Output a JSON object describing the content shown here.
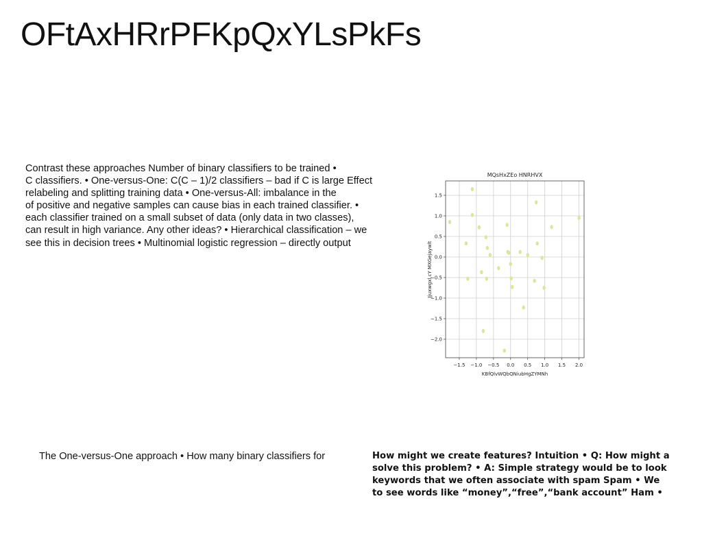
{
  "slide": {
    "title": "OFtAxHRrPFKpQxYLsPkFs",
    "main_paragraph_lines": [
      "Contrast these approaches Number of binary classifiers to be trained •",
      "C classifiers. • One-versus-One: C(C – 1)/2 classifiers – bad if C is large Effect",
      "relabeling and splitting training data • One-versus-All: imbalance in the",
      "of positive and negative samples can cause bias in each trained classifier. •",
      "each classifier trained on a small subset of data (only data in two classes),",
      "can result in high variance. Any other ideas? • Hierarchical classification – we",
      "see this in decision trees • Multinomial logistic regression – directly output"
    ],
    "bottom_text": "The One-versus-One approach • How many binary classifiers for",
    "right_paragraph_lines": [
      "How might we create features? Intuition • Q: How might a",
      "solve this problem? • A: Simple strategy would be to look",
      "keywords that we often associate with spam Spam • We",
      "to see words like “money”,“free”,“bank account” Ham •"
    ]
  },
  "chart_data": {
    "type": "scatter",
    "title": "MQsHxZEo HNRHVX",
    "xlabel": "KBfQlvWQbQNiubHgZYMNh",
    "ylabel": "Jjuxwgxl.cY MXGejaywlt",
    "xlim": [
      -1.9,
      2.15
    ],
    "ylim": [
      -2.45,
      1.85
    ],
    "xticks": [
      -1.5,
      -1.0,
      -0.5,
      0.0,
      0.5,
      1.0,
      1.5,
      2.0
    ],
    "yticks": [
      1.5,
      1.0,
      0.5,
      0.0,
      -0.5,
      -1.0,
      -1.5,
      -2.0
    ],
    "xtick_labels": [
      "−1.5",
      "−1.0",
      "−0.5",
      "0.0",
      "0.5",
      "1.0",
      "1.5",
      "2.0"
    ],
    "ytick_labels": [
      "1.5",
      "1.0",
      "0.5",
      "0.0",
      "−0.5",
      "−1.0",
      "−1.5",
      "−2.0"
    ],
    "grid": true,
    "point_color": "#dde59a",
    "points": [
      {
        "x": -1.12,
        "y": 1.65
      },
      {
        "x": -1.78,
        "y": 0.85
      },
      {
        "x": -1.12,
        "y": 1.02
      },
      {
        "x": -1.3,
        "y": 0.33
      },
      {
        "x": -0.92,
        "y": 0.72
      },
      {
        "x": -0.72,
        "y": 0.48
      },
      {
        "x": -0.68,
        "y": 0.22
      },
      {
        "x": -0.6,
        "y": 0.05
      },
      {
        "x": -1.25,
        "y": -0.53
      },
      {
        "x": -0.85,
        "y": -0.37
      },
      {
        "x": -0.7,
        "y": -0.53
      },
      {
        "x": -0.35,
        "y": -0.27
      },
      {
        "x": -0.1,
        "y": 0.78
      },
      {
        "x": -0.08,
        "y": 0.12
      },
      {
        "x": -0.05,
        "y": 0.1
      },
      {
        "x": 0.0,
        "y": -0.17
      },
      {
        "x": 0.02,
        "y": -0.52
      },
      {
        "x": 0.05,
        "y": -0.73
      },
      {
        "x": 0.28,
        "y": 0.12
      },
      {
        "x": 0.5,
        "y": 0.05
      },
      {
        "x": 0.75,
        "y": 1.33
      },
      {
        "x": 0.78,
        "y": 0.33
      },
      {
        "x": 0.92,
        "y": -0.02
      },
      {
        "x": 0.7,
        "y": -0.58
      },
      {
        "x": 0.98,
        "y": -0.75
      },
      {
        "x": 1.2,
        "y": 0.73
      },
      {
        "x": 2.0,
        "y": 0.95
      },
      {
        "x": 0.38,
        "y": -1.23
      },
      {
        "x": -0.8,
        "y": -1.8
      },
      {
        "x": -0.18,
        "y": -2.28
      }
    ]
  }
}
